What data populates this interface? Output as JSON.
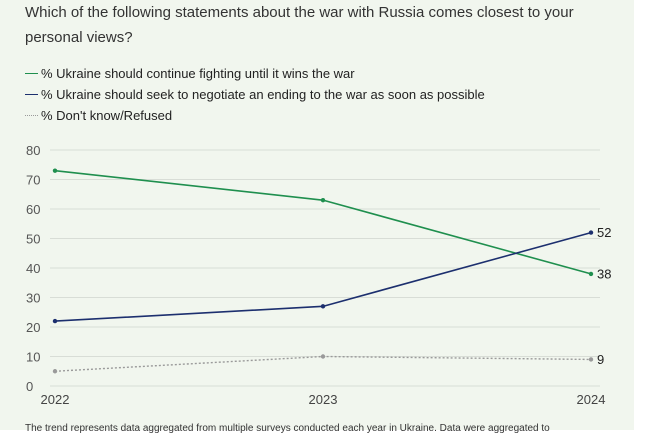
{
  "question": "Which of the following statements about the war with Russia comes closest to your personal views?",
  "footnote": "The trend represents data aggregated from multiple surveys conducted each year in Ukraine. Data were aggregated to",
  "colors": {
    "series_fight": "#1f8f4e",
    "series_negotiate": "#1c2f6e",
    "series_dontknow": "#9a9a9a",
    "grid": "#d8ddd6",
    "text": "#333333",
    "background": "#f1f6ee"
  },
  "chart_data": {
    "type": "line",
    "x": [
      "2022",
      "2023",
      "2024"
    ],
    "ylim": [
      0,
      80
    ],
    "yticks": [
      0,
      10,
      20,
      30,
      40,
      50,
      60,
      70,
      80
    ],
    "grid": true,
    "legend_placement": "top-left",
    "series": [
      {
        "name": "% Ukraine should continue fighting until it wins the war",
        "values": [
          73,
          63,
          38
        ],
        "end_label": "38",
        "color": "#1f8f4e",
        "style": "solid"
      },
      {
        "name": "% Ukraine should seek to negotiate an ending to the war as soon as possible",
        "values": [
          22,
          27,
          52
        ],
        "end_label": "52",
        "color": "#1c2f6e",
        "style": "solid"
      },
      {
        "name": "% Don't know/Refused",
        "values": [
          5,
          10,
          9
        ],
        "end_label": "9",
        "color": "#9a9a9a",
        "style": "dotted"
      }
    ]
  }
}
